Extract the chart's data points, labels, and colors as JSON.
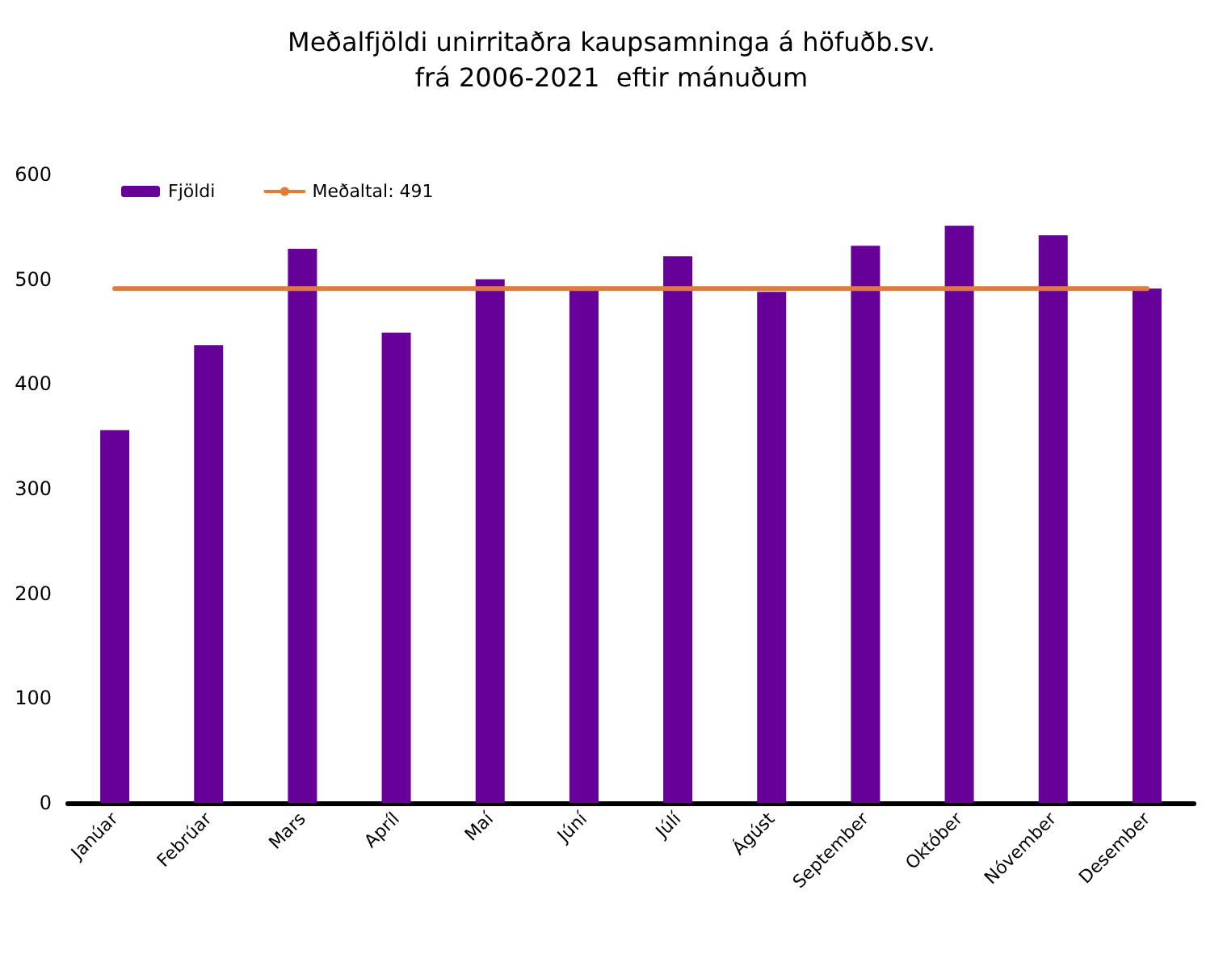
{
  "chart_data": {
    "type": "bar",
    "title": "Meðalfjöldi unirritaðra kaupsamninga á höfuðb.sv.\nfrá 2006-2021  eftir mánuðum",
    "categories": [
      "Janúar",
      "Febrúar",
      "Mars",
      "Apríl",
      "Maí",
      "Júní",
      "Júlí",
      "Ágúst",
      "September",
      "Október",
      "Nóvember",
      "Desember"
    ],
    "series": [
      {
        "name": "Fjöldi",
        "color": "#660099",
        "values": [
          356,
          437,
          529,
          449,
          500,
          491,
          522,
          488,
          532,
          551,
          542,
          491
        ]
      },
      {
        "name": "Meðaltal: 491",
        "type": "line",
        "color": "#e07b39",
        "marker": "none",
        "values": [
          491,
          491,
          491,
          491,
          491,
          491,
          491,
          491,
          491,
          491,
          491,
          491
        ]
      }
    ],
    "ylim": [
      0,
      600
    ],
    "yticks": [
      0,
      100,
      200,
      300,
      400,
      500,
      600
    ],
    "grid": false,
    "legend": "top left"
  }
}
